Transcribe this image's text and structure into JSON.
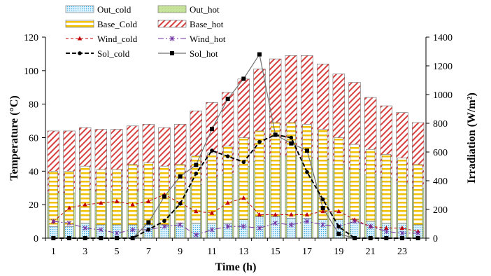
{
  "chart_data": {
    "type": "bar",
    "title": "",
    "xlabel": "Time (h)",
    "ylabel": "Temperature (°C)",
    "y2label": "Irradiation (W/m²)",
    "x": [
      1,
      2,
      3,
      4,
      5,
      6,
      7,
      8,
      9,
      10,
      11,
      12,
      13,
      14,
      15,
      16,
      17,
      18,
      19,
      20,
      21,
      22,
      23,
      24
    ],
    "x_tick_labels": [
      "1",
      "3",
      "5",
      "7",
      "9",
      "11",
      "13",
      "15",
      "17",
      "19",
      "21",
      "23"
    ],
    "ylim": [
      0,
      120
    ],
    "y_ticks": [
      "0",
      "20",
      "40",
      "60",
      "80",
      "100",
      "120"
    ],
    "y2lim": [
      0,
      1400
    ],
    "y2_ticks": [
      "0",
      "200",
      "400",
      "600",
      "800",
      "1000",
      "1200",
      "1400"
    ],
    "bar_groups": [
      {
        "name": "cold",
        "stack": [
          "Out_cold",
          "Base_Cold"
        ]
      },
      {
        "name": "hot",
        "stack": [
          "Out_hot",
          "Base_hot"
        ]
      }
    ],
    "series": [
      {
        "name": "Out_cold",
        "kind": "bar",
        "axis": "left",
        "color": "#66ccff",
        "values": [
          7,
          7,
          9,
          8,
          8,
          8,
          8,
          8,
          9,
          9,
          9,
          9,
          11,
          13,
          13,
          12,
          12,
          11,
          11,
          11,
          10,
          9,
          9,
          8
        ]
      },
      {
        "name": "Out_hot",
        "kind": "bar",
        "axis": "left",
        "color": "#b6d98a",
        "values": [
          27,
          27,
          29,
          28,
          28,
          28,
          29,
          29,
          30,
          32,
          36,
          38,
          43,
          46,
          49,
          49,
          48,
          47,
          44,
          41,
          38,
          36,
          33,
          30
        ]
      },
      {
        "name": "Base_Cold",
        "kind": "bar",
        "axis": "left",
        "color": "#ffd24d",
        "values": [
          40,
          40,
          43,
          41,
          41,
          44,
          45,
          43,
          44,
          49,
          51,
          55,
          60,
          64,
          69,
          69,
          68,
          65,
          60,
          56,
          53,
          50,
          48,
          44
        ]
      },
      {
        "name": "Base_hot",
        "kind": "bar",
        "axis": "left",
        "color": "#e06666",
        "values": [
          64,
          64,
          66,
          65,
          65,
          67,
          68,
          66,
          68,
          76,
          81,
          87,
          95,
          101,
          107,
          109,
          109,
          104,
          98,
          93,
          84,
          79,
          75,
          69
        ]
      },
      {
        "name": "Wind_cold",
        "kind": "line",
        "axis": "left",
        "color": "#c00000",
        "values": [
          10,
          18,
          20,
          21,
          22,
          20,
          22,
          26,
          21,
          16,
          15,
          21,
          24,
          14,
          14,
          14,
          14,
          16,
          16,
          11,
          7,
          6,
          6,
          4
        ]
      },
      {
        "name": "Wind_hot",
        "kind": "line",
        "axis": "left",
        "color": "#7030a0",
        "values": [
          10,
          9,
          6,
          5,
          3,
          5,
          5,
          7,
          8,
          2,
          5,
          7,
          7,
          6,
          9,
          8,
          10,
          8,
          7,
          10,
          7,
          4,
          3,
          3
        ]
      },
      {
        "name": "Sol_cold",
        "kind": "line",
        "axis": "right",
        "color": "#000000",
        "values": [
          0,
          0,
          0,
          0,
          0,
          0,
          60,
          120,
          240,
          450,
          610,
          570,
          530,
          670,
          720,
          700,
          460,
          270,
          80,
          0,
          0,
          0,
          0,
          0
        ]
      },
      {
        "name": "Sol_hot",
        "kind": "line",
        "axis": "right",
        "color": "#555555",
        "values": [
          0,
          0,
          0,
          0,
          0,
          0,
          110,
          290,
          430,
          510,
          760,
          970,
          1110,
          1280,
          720,
          660,
          610,
          210,
          30,
          0,
          0,
          0,
          0,
          0
        ]
      }
    ],
    "legend": {
      "position": "top-left",
      "columns": 2
    },
    "grid": false
  }
}
